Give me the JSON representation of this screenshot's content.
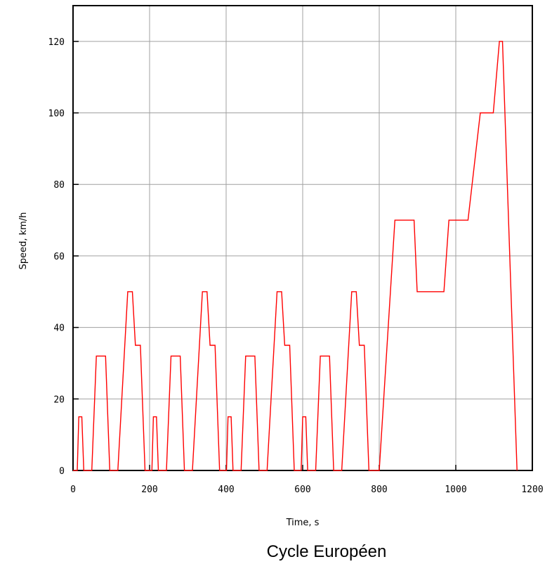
{
  "chart_data": {
    "type": "line",
    "title": "Cycle Européen",
    "xlabel": "Time, s",
    "ylabel": "Speed, km/h",
    "xlim": [
      0,
      1200
    ],
    "ylim": [
      0,
      130
    ],
    "xticks": [
      0,
      200,
      400,
      600,
      800,
      1000,
      1200
    ],
    "yticks": [
      0,
      20,
      40,
      60,
      80,
      100,
      120
    ],
    "grid": true,
    "legend": "none",
    "series": [
      {
        "color": "#ff0000",
        "x": [
          0,
          11,
          15,
          23,
          28,
          49,
          61,
          85,
          96,
          117,
          143,
          155,
          163,
          176,
          188,
          195,
          206,
          210,
          218,
          223,
          244,
          256,
          280,
          291,
          312,
          338,
          350,
          358,
          371,
          383,
          390,
          401,
          405,
          413,
          418,
          439,
          451,
          475,
          486,
          507,
          533,
          545,
          553,
          566,
          578,
          585,
          596,
          600,
          608,
          613,
          634,
          646,
          670,
          681,
          702,
          728,
          740,
          748,
          761,
          773,
          780,
          800,
          841,
          891,
          899,
          969,
          982,
          1032,
          1064,
          1098,
          1114,
          1122,
          1160
        ],
        "y": [
          0,
          0,
          15,
          15,
          0,
          0,
          32,
          32,
          0,
          0,
          50,
          50,
          35,
          35,
          0,
          0,
          0,
          15,
          15,
          0,
          0,
          32,
          32,
          0,
          0,
          50,
          50,
          35,
          35,
          0,
          0,
          0,
          15,
          15,
          0,
          0,
          32,
          32,
          0,
          0,
          50,
          50,
          35,
          35,
          0,
          0,
          0,
          15,
          15,
          0,
          0,
          32,
          32,
          0,
          0,
          50,
          50,
          35,
          35,
          0,
          0,
          0,
          70,
          70,
          50,
          50,
          70,
          70,
          100,
          100,
          120,
          120,
          0
        ]
      }
    ]
  }
}
